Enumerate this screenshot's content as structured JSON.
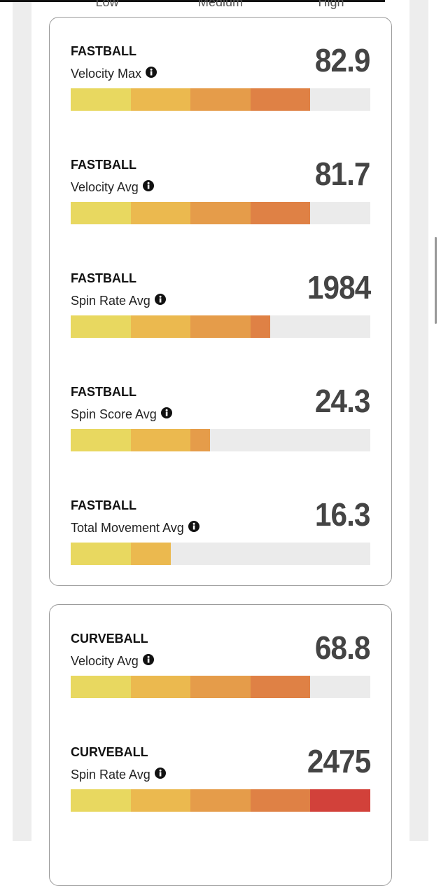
{
  "scale": {
    "low": "Low",
    "medium": "Medium",
    "high": "High"
  },
  "cards": [
    {
      "metrics": [
        {
          "pitch": "FASTBALL",
          "label": "Velocity Max",
          "value": 82.9
        },
        {
          "pitch": "FASTBALL",
          "label": "Velocity Avg",
          "value": 81.7
        },
        {
          "pitch": "FASTBALL",
          "label": "Spin Rate Avg",
          "value": 1984
        },
        {
          "pitch": "FASTBALL",
          "label": "Spin Score Avg",
          "value": 24.3
        },
        {
          "pitch": "FASTBALL",
          "label": "Total Movement Avg",
          "value": 16.3
        }
      ]
    },
    {
      "metrics": [
        {
          "pitch": "CURVEBALL",
          "label": "Velocity Avg",
          "value": 68.8
        },
        {
          "pitch": "CURVEBALL",
          "label": "Spin Rate Avg",
          "value": 2475
        }
      ]
    }
  ]
}
